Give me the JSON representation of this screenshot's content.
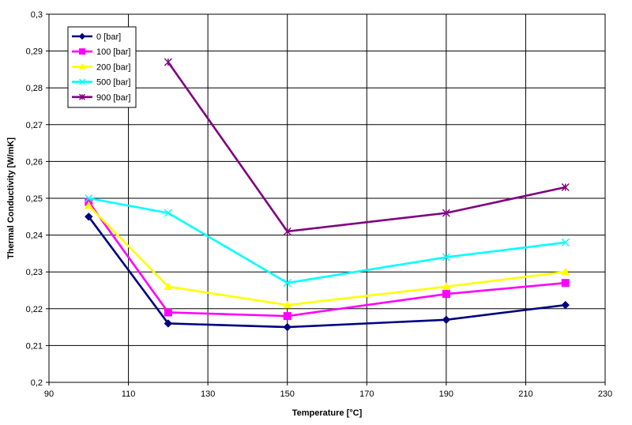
{
  "chart_data": {
    "type": "line",
    "title": "",
    "xlabel": "Temperature [°C]",
    "ylabel": "Thermal Conductivity [W/mK]",
    "xlim": [
      90,
      230
    ],
    "ylim": [
      0.2,
      0.3
    ],
    "x_ticks": [
      "90",
      "110",
      "130",
      "150",
      "170",
      "190",
      "210",
      "230"
    ],
    "y_ticks": [
      "0,2",
      "0,21",
      "0,22",
      "0,23",
      "0,24",
      "0,25",
      "0,26",
      "0,27",
      "0,28",
      "0,29",
      "0,3"
    ],
    "grid": true,
    "legend_position": "top-left",
    "series": [
      {
        "name": "0 [bar]",
        "color": "#000080",
        "marker": "diamond",
        "x": [
          100,
          120,
          150,
          190,
          220
        ],
        "y": [
          0.245,
          0.216,
          0.215,
          0.217,
          0.221
        ]
      },
      {
        "name": "100 [bar]",
        "color": "#FF00FF",
        "marker": "square",
        "x": [
          100,
          120,
          150,
          190,
          220
        ],
        "y": [
          0.249,
          0.219,
          0.218,
          0.224,
          0.227
        ]
      },
      {
        "name": "200 [bar]",
        "color": "#FFFF00",
        "marker": "triangle",
        "x": [
          100,
          120,
          150,
          190,
          220
        ],
        "y": [
          0.248,
          0.226,
          0.221,
          0.226,
          0.23
        ]
      },
      {
        "name": "500 [bar]",
        "color": "#00FFFF",
        "marker": "x",
        "x": [
          100,
          120,
          150,
          190,
          220
        ],
        "y": [
          0.25,
          0.246,
          0.227,
          0.234,
          0.238
        ]
      },
      {
        "name": "900 [bar]",
        "color": "#800080",
        "marker": "star",
        "x": [
          120,
          150,
          190,
          220
        ],
        "y": [
          0.287,
          0.241,
          0.246,
          0.253
        ]
      }
    ]
  }
}
